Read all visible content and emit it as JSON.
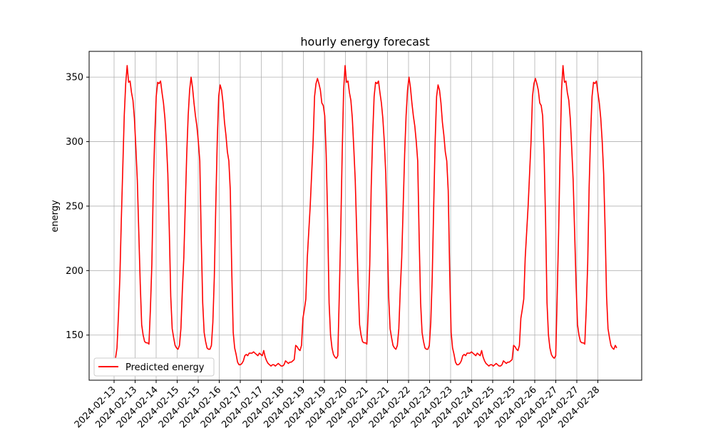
{
  "chart_data": {
    "type": "line",
    "title": "hourly energy forecast",
    "xlabel": "",
    "ylabel": "energy",
    "ylim": [
      115,
      370
    ],
    "y_ticks": [
      150,
      200,
      250,
      300,
      350
    ],
    "x_ticks": [
      "2024-02-13",
      "2024-02-13",
      "2024-02-14",
      "2024-02-15",
      "2024-02-15",
      "2024-02-16",
      "2024-02-17",
      "2024-02-17",
      "2024-02-18",
      "2024-02-19",
      "2024-02-19",
      "2024-02-20",
      "2024-02-21",
      "2024-02-21",
      "2024-02-22",
      "2024-02-23",
      "2024-02-23",
      "2024-02-24",
      "2024-02-25",
      "2024-02-25",
      "2024-02-26",
      "2024-02-27",
      "2024-02-27",
      "2024-02-28"
    ],
    "grid": true,
    "legend_position": "lower left",
    "series": [
      {
        "name": "Predicted energy",
        "color": "#ff0000",
        "values": [
          132,
          132,
          140,
          165,
          195,
          240,
          280,
          320,
          345,
          359,
          346,
          347,
          338,
          332,
          318,
          295,
          270,
          230,
          190,
          158,
          150,
          145,
          144,
          144,
          143,
          170,
          205,
          265,
          305,
          335,
          346,
          345,
          347,
          338,
          330,
          318,
          300,
          275,
          232,
          180,
          155,
          148,
          142,
          140,
          139,
          142,
          155,
          185,
          210,
          250,
          290,
          320,
          340,
          350,
          342,
          330,
          320,
          312,
          300,
          285,
          225,
          175,
          152,
          145,
          140,
          139,
          139,
          142,
          160,
          195,
          250,
          300,
          335,
          344,
          340,
          330,
          315,
          305,
          292,
          285,
          262,
          200,
          152,
          140,
          135,
          129,
          127,
          127,
          128,
          130,
          134,
          135,
          134,
          136,
          136,
          136,
          137,
          136,
          135,
          134,
          136,
          135,
          134,
          138,
          133,
          130,
          128,
          127,
          126,
          127,
          127,
          126,
          127,
          128,
          127,
          126,
          126,
          127,
          130,
          129,
          128,
          129,
          129,
          130,
          131,
          142,
          141,
          139,
          138,
          142,
          163,
          170,
          178,
          210,
          230,
          250,
          275,
          300,
          335,
          345,
          349,
          345,
          340,
          330,
          328,
          320,
          290,
          240,
          175,
          150,
          140,
          135,
          133,
          132,
          134,
          180,
          230,
          290,
          340,
          359,
          346,
          347,
          338,
          332,
          318,
          295,
          270,
          230,
          190,
          158,
          150,
          145,
          144,
          144,
          143,
          170,
          205,
          265,
          305,
          335,
          346,
          345,
          347,
          338,
          330,
          318,
          300,
          275,
          232,
          180,
          155,
          148,
          142,
          140,
          139,
          142,
          155,
          185,
          210,
          250,
          290,
          320,
          340,
          350,
          342,
          330,
          320,
          312,
          300,
          285,
          225,
          175,
          152,
          145,
          140,
          139,
          139,
          142,
          160,
          195,
          250,
          300,
          335,
          344,
          340,
          330,
          315,
          305,
          292,
          285,
          262,
          200,
          152,
          140,
          135,
          129,
          127,
          127,
          128,
          130,
          134,
          135,
          134,
          136,
          136,
          136,
          137,
          136,
          135,
          134,
          136,
          135,
          134,
          138,
          133,
          130,
          128,
          127,
          126,
          127,
          127,
          126,
          127,
          128,
          127,
          126,
          126,
          127,
          130,
          129,
          128,
          129,
          129,
          130,
          131,
          142,
          141,
          139,
          138,
          142,
          163,
          170,
          178,
          210,
          230,
          250,
          275,
          300,
          335,
          345,
          349,
          345,
          340,
          330,
          328,
          320,
          290,
          240,
          175,
          150,
          140,
          135,
          133,
          132,
          134,
          180,
          230,
          290,
          340,
          359,
          346,
          347,
          338,
          332,
          318,
          295,
          270,
          230,
          190,
          158,
          150,
          145,
          144,
          144,
          143,
          170,
          205,
          265,
          305,
          335,
          346,
          345,
          347,
          338,
          330,
          318,
          300,
          275,
          232,
          180,
          155,
          148,
          142,
          140,
          139,
          142,
          140
        ]
      }
    ]
  }
}
